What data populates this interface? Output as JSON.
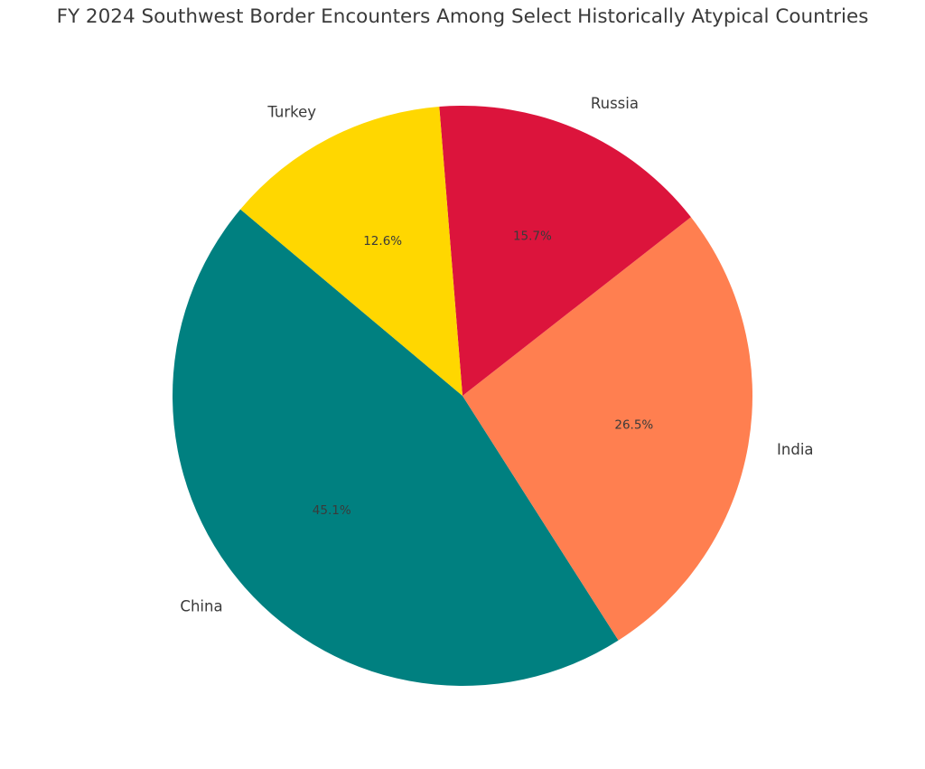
{
  "chart_data": {
    "type": "pie",
    "title": "FY 2024 Southwest Border Encounters Among Select Historically Atypical Countries",
    "categories": [
      "China",
      "India",
      "Russia",
      "Turkey"
    ],
    "values": [
      45.1,
      26.5,
      15.7,
      12.6
    ],
    "value_labels": [
      "45.1%",
      "26.5%",
      "15.7%",
      "12.6%"
    ],
    "colors": [
      "#008080",
      "#FF7F50",
      "#DC143C",
      "#FFD700"
    ],
    "start_angle": 140,
    "direction": "counterclockwise",
    "legend": "none",
    "xlabel": "",
    "ylabel": ""
  }
}
